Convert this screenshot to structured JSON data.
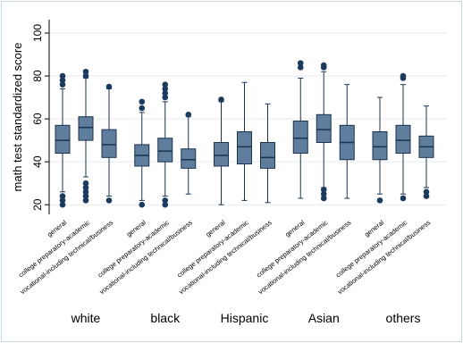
{
  "chart_data": {
    "type": "box",
    "y_label": "math test standardized score",
    "subcategories": [
      "general",
      "college preparatory-academic",
      "vocational-including technical/business"
    ],
    "ylim": [
      15.5,
      106.25
    ],
    "yticks": [
      20,
      40,
      60,
      80,
      100
    ],
    "grid": true,
    "box_color": "#5f7d9c",
    "outline_color": "#1c3350",
    "outlier_color": "#1a3a5e",
    "groups": [
      {
        "name": "white",
        "boxes": [
          {
            "whisker_low": 26,
            "q1": 44,
            "median": 50,
            "q3": 57,
            "whisker_high": 74,
            "outliers": [
              20,
              22,
              24,
              76,
              78,
              80
            ]
          },
          {
            "whisker_low": 33,
            "q1": 50,
            "median": 56,
            "q3": 61,
            "whisker_high": 79,
            "outliers": [
              22,
              24,
              26,
              28,
              30,
              80,
              82
            ]
          },
          {
            "whisker_low": 24,
            "q1": 42,
            "median": 48,
            "q3": 55,
            "whisker_high": 74,
            "outliers": [
              22,
              75
            ]
          }
        ]
      },
      {
        "name": "black",
        "boxes": [
          {
            "whisker_low": 22,
            "q1": 38,
            "median": 43,
            "q3": 48,
            "whisker_high": 63,
            "outliers": [
              20,
              65,
              68
            ]
          },
          {
            "whisker_low": 24,
            "q1": 40,
            "median": 45,
            "q3": 51,
            "whisker_high": 68,
            "outliers": [
              20,
              22,
              70,
              72,
              74,
              76
            ]
          },
          {
            "whisker_low": 25,
            "q1": 37,
            "median": 41,
            "q3": 46,
            "whisker_high": 61,
            "outliers": [
              62
            ]
          }
        ]
      },
      {
        "name": "Hispanic",
        "boxes": [
          {
            "whisker_low": 20,
            "q1": 38,
            "median": 43,
            "q3": 49,
            "whisker_high": 68,
            "outliers": [
              69
            ]
          },
          {
            "whisker_low": 22,
            "q1": 39,
            "median": 47,
            "q3": 54,
            "whisker_high": 77,
            "outliers": []
          },
          {
            "whisker_low": 21,
            "q1": 37,
            "median": 42,
            "q3": 49,
            "whisker_high": 67,
            "outliers": []
          }
        ]
      },
      {
        "name": "Asian",
        "boxes": [
          {
            "whisker_low": 23,
            "q1": 44,
            "median": 51,
            "q3": 59,
            "whisker_high": 79,
            "outliers": [
              84,
              86
            ]
          },
          {
            "whisker_low": 28,
            "q1": 49,
            "median": 55,
            "q3": 62,
            "whisker_high": 82,
            "outliers": [
              23,
              25,
              27,
              84,
              85
            ]
          },
          {
            "whisker_low": 23,
            "q1": 41,
            "median": 49,
            "q3": 57,
            "whisker_high": 76,
            "outliers": []
          }
        ]
      },
      {
        "name": "others",
        "boxes": [
          {
            "whisker_low": 25,
            "q1": 41,
            "median": 47,
            "q3": 54,
            "whisker_high": 70,
            "outliers": [
              22
            ]
          },
          {
            "whisker_low": 25,
            "q1": 44,
            "median": 50,
            "q3": 57,
            "whisker_high": 76,
            "outliers": [
              23,
              79,
              80
            ]
          },
          {
            "whisker_low": 28,
            "q1": 42,
            "median": 47,
            "q3": 52,
            "whisker_high": 66,
            "outliers": [
              24,
              26
            ]
          }
        ]
      }
    ]
  }
}
